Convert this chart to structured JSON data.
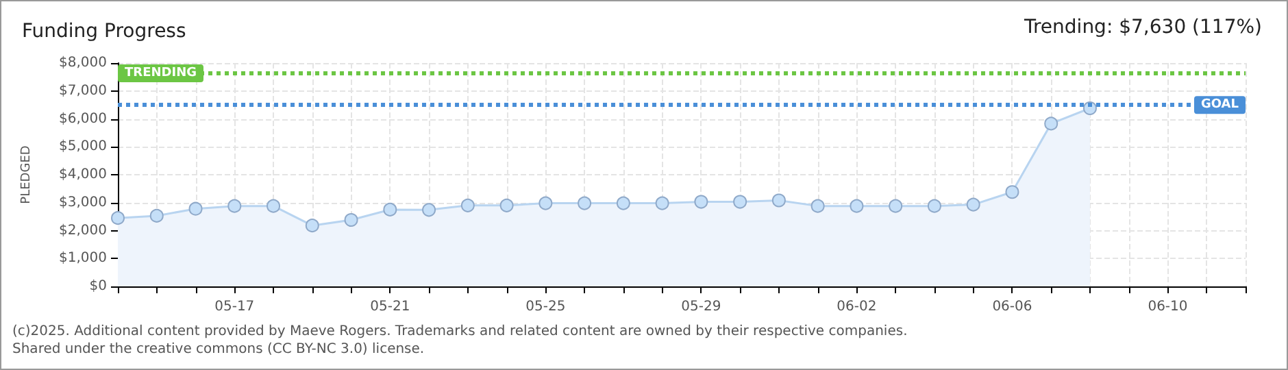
{
  "chart_data": {
    "type": "area",
    "title": "Funding Progress",
    "ylabel": "PLEDGED",
    "annotations": [
      "Trending: $7,630 (117%)",
      "(c)2025. Additional content provided by Maeve Rogers. Trademarks and related content are owned by their respective companies.",
      "Shared under the creative commons (CC BY-NC 3.0) license."
    ],
    "x": [
      "--05-14",
      "--05-15",
      "--05-16",
      "--05-17",
      "--05-18",
      "--05-19",
      "--05-20",
      "--05-21",
      "--05-22",
      "--05-23",
      "--05-24",
      "--05-25",
      "--05-26",
      "--05-27",
      "--05-28",
      "--05-29",
      "--05-30",
      "--05-31",
      "--06-01",
      "--06-02",
      "--06-03",
      "--06-04",
      "--06-05",
      "--06-06",
      "--06-07",
      "--06-08"
    ],
    "series": [
      {
        "color": "#c5dff8",
        "values": [
          2450,
          2530,
          2780,
          2880,
          2880,
          2180,
          2380,
          2750,
          2740,
          2900,
          2900,
          2980,
          2980,
          2980,
          2980,
          3030,
          3030,
          3080,
          2880,
          2880,
          2880,
          2880,
          2930,
          3380,
          5830,
          6380
        ]
      }
    ],
    "xlim": [
      "--05-14",
      "--06-12"
    ],
    "xticks": [
      {
        "value": "--05-14",
        "label": null
      },
      {
        "value": "--05-15",
        "label": null
      },
      {
        "value": "--05-16",
        "label": null
      },
      {
        "value": "--05-17",
        "label": "05-17"
      },
      {
        "value": "--05-18",
        "label": null
      },
      {
        "value": "--05-19",
        "label": null
      },
      {
        "value": "--05-20",
        "label": null
      },
      {
        "value": "--05-21",
        "label": "05-21"
      },
      {
        "value": "--05-22",
        "label": null
      },
      {
        "value": "--05-23",
        "label": null
      },
      {
        "value": "--05-24",
        "label": null
      },
      {
        "value": "--05-25",
        "label": "05-25"
      },
      {
        "value": "--05-26",
        "label": null
      },
      {
        "value": "--05-27",
        "label": null
      },
      {
        "value": "--05-28",
        "label": null
      },
      {
        "value": "--05-29",
        "label": "05-29"
      },
      {
        "value": "--05-30",
        "label": null
      },
      {
        "value": "--05-31",
        "label": null
      },
      {
        "value": "--06-01",
        "label": null
      },
      {
        "value": "--06-02",
        "label": "06-02"
      },
      {
        "value": "--06-03",
        "label": null
      },
      {
        "value": "--06-04",
        "label": null
      },
      {
        "value": "--06-05",
        "label": null
      },
      {
        "value": "--06-06",
        "label": "06-06"
      },
      {
        "value": "--06-07",
        "label": null
      },
      {
        "value": "--06-08",
        "label": null
      },
      {
        "value": "--06-09",
        "label": null
      },
      {
        "value": "--06-10",
        "label": "06-10"
      },
      {
        "value": "--06-11",
        "label": null
      },
      {
        "value": "--06-12",
        "label": null
      }
    ],
    "ylim": [
      0,
      8000
    ],
    "yticks": [
      {
        "value": 0,
        "label": "$0"
      },
      {
        "value": 1000,
        "label": "$1,000"
      },
      {
        "value": 2000,
        "label": "$2,000"
      },
      {
        "value": 3000,
        "label": "$3,000"
      },
      {
        "value": 4000,
        "label": "$4,000"
      },
      {
        "value": 5000,
        "label": "$5,000"
      },
      {
        "value": 6000,
        "label": "$6,000"
      },
      {
        "value": 7000,
        "label": "$7,000"
      },
      {
        "value": 8000,
        "label": "$8,000"
      }
    ],
    "ref_lines": [
      {
        "axis": "y",
        "value": 7630,
        "label": "TRENDING",
        "color": "#6cc644",
        "line_style": "dotted"
      },
      {
        "axis": "y",
        "value": 6500,
        "label": "GOAL",
        "color": "#4a8fd8",
        "line_style": "dotted"
      }
    ],
    "grid": true,
    "marker": "circle",
    "line_style": "solid"
  }
}
